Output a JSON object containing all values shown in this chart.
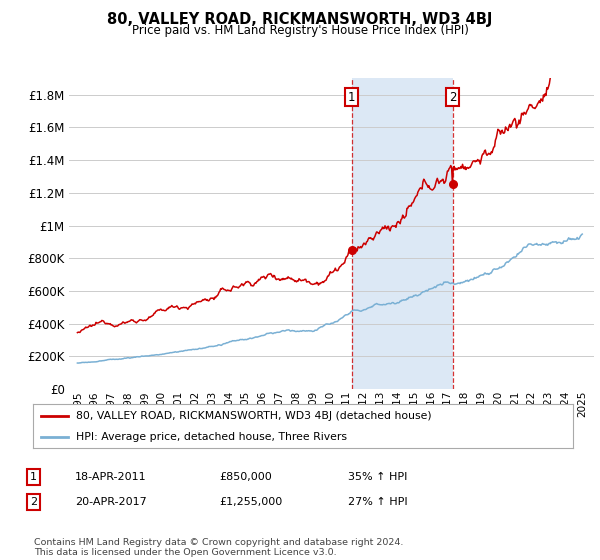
{
  "title": "80, VALLEY ROAD, RICKMANSWORTH, WD3 4BJ",
  "subtitle": "Price paid vs. HM Land Registry's House Price Index (HPI)",
  "ytick_values": [
    0,
    200000,
    400000,
    600000,
    800000,
    1000000,
    1200000,
    1400000,
    1600000,
    1800000
  ],
  "ylim": [
    0,
    1900000
  ],
  "xtick_years": [
    1995,
    1996,
    1997,
    1998,
    1999,
    2000,
    2001,
    2002,
    2003,
    2004,
    2005,
    2006,
    2007,
    2008,
    2009,
    2010,
    2011,
    2012,
    2013,
    2014,
    2015,
    2016,
    2017,
    2018,
    2019,
    2020,
    2021,
    2022,
    2023,
    2024,
    2025
  ],
  "xlim_left": 1994.5,
  "xlim_right": 2025.7,
  "sale1_year": 2011.3,
  "sale1_price": 850000,
  "sale2_year": 2017.3,
  "sale2_price": 1255000,
  "red_line_color": "#cc0000",
  "blue_line_color": "#7ab0d4",
  "grid_color": "#cccccc",
  "highlight_bg": "#dce8f5",
  "chart_bg": "#ffffff",
  "sale_box_color": "#cc0000",
  "legend_label_red": "80, VALLEY ROAD, RICKMANSWORTH, WD3 4BJ (detached house)",
  "legend_label_blue": "HPI: Average price, detached house, Three Rivers",
  "footer": "Contains HM Land Registry data © Crown copyright and database right 2024.\nThis data is licensed under the Open Government Licence v3.0.",
  "table_rows": [
    {
      "num": "1",
      "date": "18-APR-2011",
      "price": "£850,000",
      "pct": "35% ↑ HPI"
    },
    {
      "num": "2",
      "date": "20-APR-2017",
      "price": "£1,255,000",
      "pct": "27% ↑ HPI"
    }
  ]
}
